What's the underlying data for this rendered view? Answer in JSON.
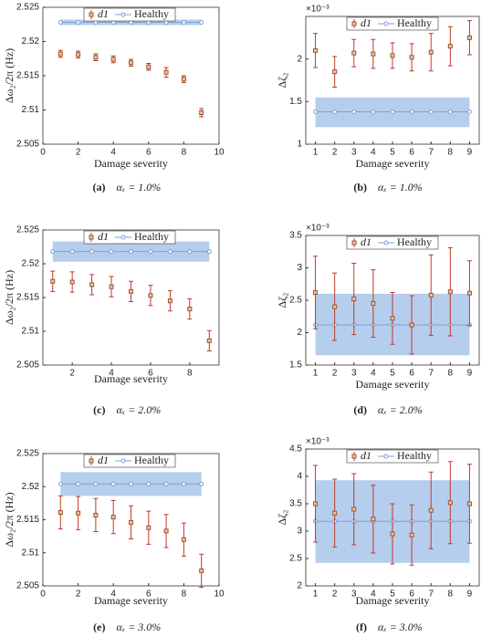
{
  "chart_data": [
    {
      "type": "errorbar",
      "caption_label": "(a)",
      "caption": "αₓ = 1.0%",
      "xlabel": "Damage severity",
      "ylabel": "Δω₂/2π (Hz)",
      "x": [
        1,
        2,
        3,
        4,
        5,
        6,
        7,
        8,
        9
      ],
      "xlim": [
        0,
        10
      ],
      "xticks": [
        0,
        2,
        4,
        6,
        8,
        10
      ],
      "ylim": [
        2.505,
        2.525
      ],
      "yticks": [
        2.505,
        2.51,
        2.515,
        2.52,
        2.525
      ],
      "series": [
        {
          "name": "d1",
          "color": "#a0522d",
          "values": [
            2.5182,
            2.5181,
            2.5177,
            2.5174,
            2.5169,
            2.5163,
            2.5155,
            2.5145,
            2.5096
          ],
          "errors": [
            0.0005,
            0.0005,
            0.0005,
            0.0005,
            0.0005,
            0.0005,
            0.0007,
            0.0005,
            0.0006
          ]
        },
        {
          "name": "Healthy",
          "color": "#7f9fd6",
          "band_color": "#a9c6ea",
          "values": [
            2.5228,
            2.5228,
            2.5228,
            2.5228,
            2.5228,
            2.5228,
            2.5228,
            2.5228,
            2.5228
          ],
          "band_low": 2.5224,
          "band_high": 2.5232
        }
      ]
    },
    {
      "type": "errorbar",
      "caption_label": "(b)",
      "caption": "αₓ = 1.0%",
      "xlabel": "Damage severity",
      "ylabel": "Δζ₂",
      "y_multiplier": "×10⁻³",
      "x": [
        1,
        2,
        3,
        4,
        5,
        6,
        7,
        8,
        9
      ],
      "xlim": [
        0.5,
        9.5
      ],
      "xticks": [
        1,
        2,
        3,
        4,
        5,
        6,
        7,
        8,
        9
      ],
      "ylim": [
        1,
        2.5
      ],
      "yticks": [
        1,
        1.5,
        2
      ],
      "series": [
        {
          "name": "d1",
          "color": "#a0522d",
          "values": [
            2.1,
            1.85,
            2.07,
            2.06,
            2.04,
            2.02,
            2.08,
            2.15,
            2.25
          ],
          "errors": [
            0.2,
            0.18,
            0.16,
            0.17,
            0.15,
            0.16,
            0.22,
            0.23,
            0.2
          ]
        },
        {
          "name": "Healthy",
          "color": "#7f9fd6",
          "band_color": "#a9c6ea",
          "values": [
            1.38,
            1.38,
            1.38,
            1.38,
            1.38,
            1.38,
            1.38,
            1.38,
            1.38
          ],
          "band_low": 1.2,
          "band_high": 1.55
        }
      ]
    },
    {
      "type": "errorbar",
      "caption_label": "(c)",
      "caption": "αₓ = 2.0%",
      "xlabel": "Damage severity",
      "ylabel": "Δω₂/2π (Hz)",
      "x": [
        1,
        2,
        3,
        4,
        5,
        6,
        7,
        8,
        9
      ],
      "xlim": [
        0.5,
        9.5
      ],
      "xticks": [
        2,
        4,
        6,
        8
      ],
      "ylim": [
        2.505,
        2.525
      ],
      "yticks": [
        2.505,
        2.51,
        2.515,
        2.52,
        2.525
      ],
      "series": [
        {
          "name": "d1",
          "color": "#a0522d",
          "values": [
            2.5174,
            2.5173,
            2.5169,
            2.5166,
            2.5159,
            2.5153,
            2.5145,
            2.5133,
            2.5086
          ],
          "errors": [
            0.0015,
            0.0015,
            0.0015,
            0.0015,
            0.0015,
            0.0015,
            0.0015,
            0.0015,
            0.0015
          ]
        },
        {
          "name": "Healthy",
          "color": "#7f9fd6",
          "band_color": "#a9c6ea",
          "values": [
            2.5218,
            2.5218,
            2.5218,
            2.5218,
            2.5218,
            2.5218,
            2.5218,
            2.5218,
            2.5218
          ],
          "band_low": 2.5203,
          "band_high": 2.5233
        }
      ]
    },
    {
      "type": "errorbar",
      "caption_label": "(d)",
      "caption": "αₓ = 2.0%",
      "xlabel": "Damage severity",
      "ylabel": "Δζ₂",
      "y_multiplier": "×10⁻³",
      "x": [
        1,
        2,
        3,
        4,
        5,
        6,
        7,
        8,
        9
      ],
      "xlim": [
        0.5,
        9.5
      ],
      "xticks": [
        1,
        2,
        3,
        4,
        5,
        6,
        7,
        8,
        9
      ],
      "ylim": [
        1.5,
        3.5
      ],
      "yticks": [
        1.5,
        2,
        2.5,
        3,
        3.5
      ],
      "series": [
        {
          "name": "d1",
          "color": "#a0522d",
          "values": [
            2.62,
            2.4,
            2.52,
            2.45,
            2.22,
            2.12,
            2.58,
            2.63,
            2.61
          ],
          "errors": [
            0.56,
            0.52,
            0.55,
            0.52,
            0.4,
            0.45,
            0.62,
            0.68,
            0.5
          ]
        },
        {
          "name": "Healthy",
          "color": "#7f9fd6",
          "band_color": "#a9c6ea",
          "values": [
            2.12,
            2.12,
            2.12,
            2.12,
            2.12,
            2.12,
            2.12,
            2.12,
            2.12
          ],
          "band_low": 1.65,
          "band_high": 2.6
        }
      ]
    },
    {
      "type": "errorbar",
      "caption_label": "(e)",
      "caption": "αₓ = 3.0%",
      "xlabel": "Damage severity",
      "ylabel": "Δω₂/2π (Hz)",
      "x": [
        1,
        2,
        3,
        4,
        5,
        6,
        7,
        8,
        9
      ],
      "xlim": [
        0,
        10
      ],
      "xticks": [
        0,
        2,
        4,
        6,
        8,
        10
      ],
      "ylim": [
        2.505,
        2.525
      ],
      "yticks": [
        2.505,
        2.51,
        2.515,
        2.52,
        2.525
      ],
      "series": [
        {
          "name": "d1",
          "color": "#a0522d",
          "values": [
            2.5161,
            2.516,
            2.5157,
            2.5154,
            2.5146,
            2.5138,
            2.5133,
            2.512,
            2.5073
          ],
          "errors": [
            0.0025,
            0.0025,
            0.0025,
            0.0025,
            0.0025,
            0.0025,
            0.0025,
            0.0025,
            0.0025
          ]
        },
        {
          "name": "Healthy",
          "color": "#7f9fd6",
          "band_color": "#a9c6ea",
          "values": [
            2.5204,
            2.5204,
            2.5204,
            2.5204,
            2.5204,
            2.5204,
            2.5204,
            2.5204,
            2.5204
          ],
          "band_low": 2.5186,
          "band_high": 2.5222
        }
      ]
    },
    {
      "type": "errorbar",
      "caption_label": "(f)",
      "caption": "αₓ = 3.0%",
      "xlabel": "Damage severity",
      "ylabel": "Δζ₂",
      "y_multiplier": "×10⁻³",
      "x": [
        1,
        2,
        3,
        4,
        5,
        6,
        7,
        8,
        9
      ],
      "xlim": [
        0.5,
        9.5
      ],
      "xticks": [
        1,
        2,
        3,
        4,
        5,
        6,
        7,
        8,
        9
      ],
      "ylim": [
        2,
        4.5
      ],
      "yticks": [
        2,
        2.5,
        3,
        3.5,
        4,
        4.5
      ],
      "series": [
        {
          "name": "d1",
          "color": "#a0522d",
          "values": [
            3.5,
            3.33,
            3.4,
            3.22,
            2.95,
            2.93,
            3.38,
            3.52,
            3.5
          ],
          "errors": [
            0.7,
            0.62,
            0.65,
            0.62,
            0.55,
            0.55,
            0.7,
            0.75,
            0.72
          ]
        },
        {
          "name": "Healthy",
          "color": "#7f9fd6",
          "band_color": "#a9c6ea",
          "values": [
            3.18,
            3.18,
            3.18,
            3.18,
            3.18,
            3.18,
            3.18,
            3.18,
            3.18
          ],
          "band_low": 2.42,
          "band_high": 3.93
        }
      ]
    }
  ]
}
